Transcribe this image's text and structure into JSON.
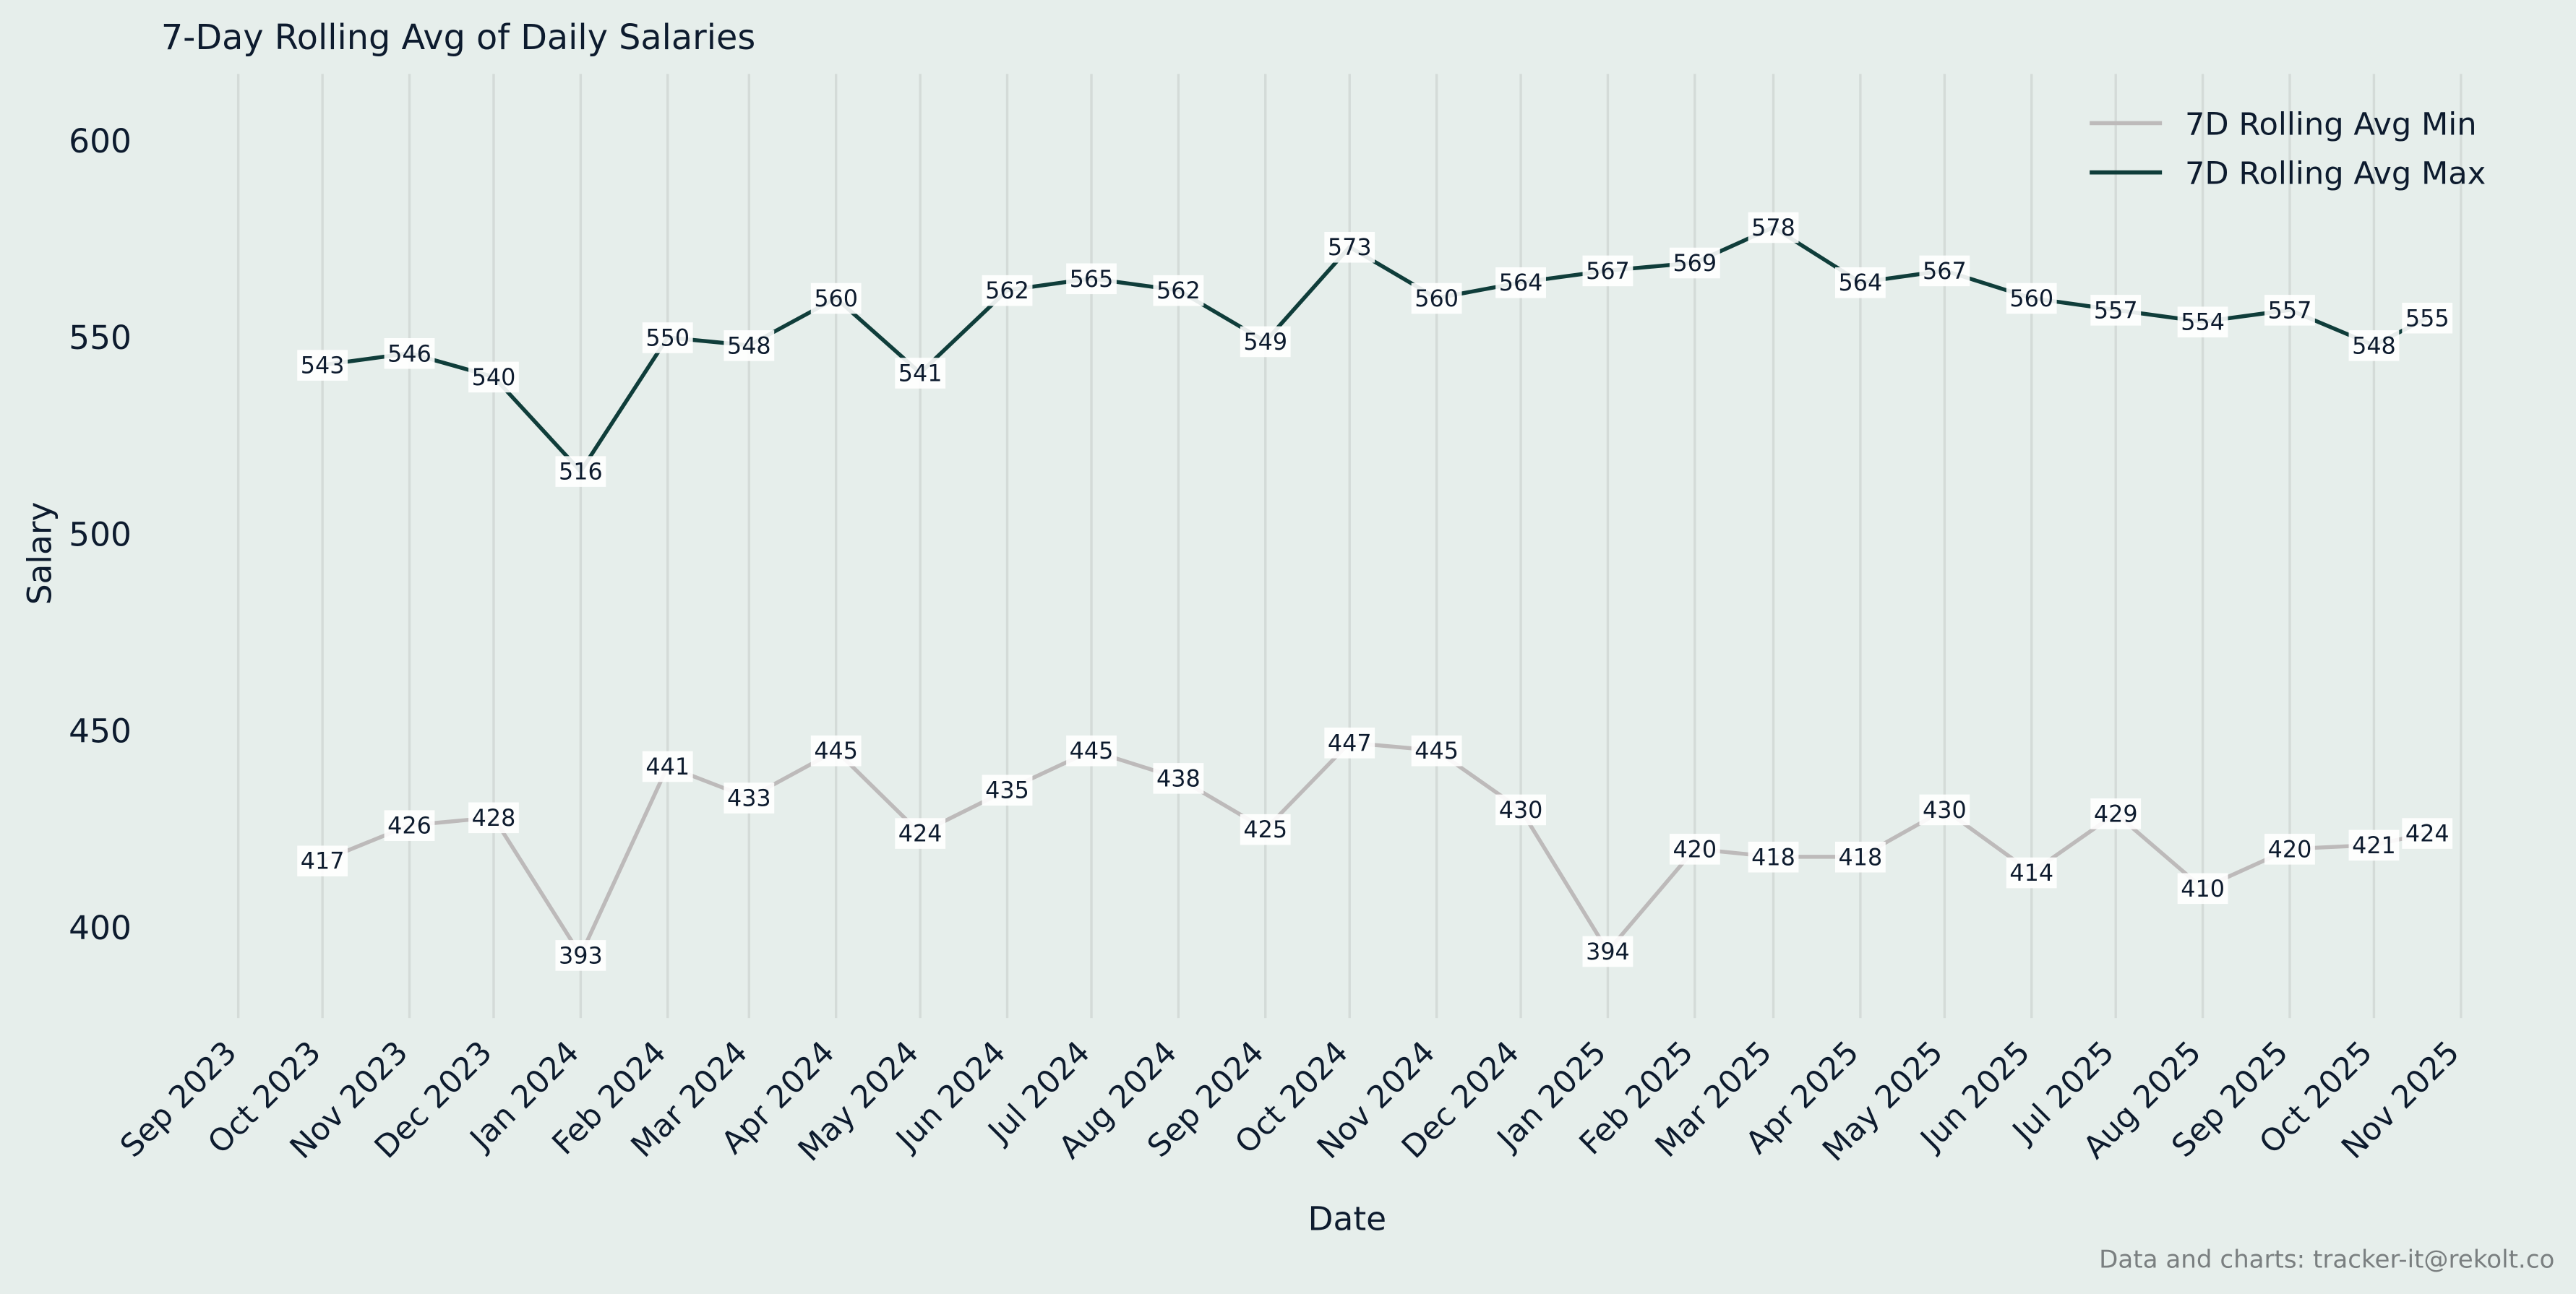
{
  "chart_data": {
    "type": "line",
    "title": "7-Day Rolling Avg of Daily Salaries",
    "x_label": "Date",
    "y_label": "Salary",
    "footnote": "Data and charts: tracker-it@rekolt.co",
    "x": [
      "2023-10",
      "2023-11",
      "2023-12",
      "2024-01",
      "2024-02",
      "2024-03",
      "2024-04",
      "2024-05",
      "2024-06",
      "2024-07",
      "2024-08",
      "2024-09",
      "2024-10",
      "2024-11",
      "2024-12",
      "2025-01",
      "2025-02",
      "2025-03",
      "2025-04",
      "2025-05",
      "2025-06",
      "2025-07",
      "2025-08",
      "2025-09",
      "2025-10",
      "2025-10-20"
    ],
    "series": [
      {
        "name": "7D Rolling Avg Min",
        "color": "#bdbaba",
        "values": [
          417,
          426,
          428,
          393,
          441,
          433,
          445,
          424,
          435,
          445,
          438,
          425,
          447,
          445,
          430,
          394,
          420,
          418,
          418,
          430,
          414,
          429,
          410,
          420,
          421,
          424
        ]
      },
      {
        "name": "7D Rolling Avg Max",
        "color": "#0f3d3a",
        "values": [
          543,
          546,
          540,
          516,
          550,
          548,
          560,
          541,
          562,
          565,
          562,
          549,
          573,
          560,
          564,
          567,
          569,
          578,
          564,
          567,
          560,
          557,
          554,
          557,
          548,
          555
        ]
      }
    ],
    "xlim": [
      "2023-09",
      "2025-11"
    ],
    "xticks": [
      {
        "value": "2023-09",
        "label": "Sep 2023"
      },
      {
        "value": "2023-10",
        "label": "Oct 2023"
      },
      {
        "value": "2023-11",
        "label": "Nov 2023"
      },
      {
        "value": "2023-12",
        "label": "Dec 2023"
      },
      {
        "value": "2024-01",
        "label": "Jan 2024"
      },
      {
        "value": "2024-02",
        "label": "Feb 2024"
      },
      {
        "value": "2024-03",
        "label": "Mar 2024"
      },
      {
        "value": "2024-04",
        "label": "Apr 2024"
      },
      {
        "value": "2024-05",
        "label": "May 2024"
      },
      {
        "value": "2024-06",
        "label": "Jun 2024"
      },
      {
        "value": "2024-07",
        "label": "Jul 2024"
      },
      {
        "value": "2024-08",
        "label": "Aug 2024"
      },
      {
        "value": "2024-09",
        "label": "Sep 2024"
      },
      {
        "value": "2024-10",
        "label": "Oct 2024"
      },
      {
        "value": "2024-11",
        "label": "Nov 2024"
      },
      {
        "value": "2024-12",
        "label": "Dec 2024"
      },
      {
        "value": "2025-01",
        "label": "Jan 2025"
      },
      {
        "value": "2025-02",
        "label": "Feb 2025"
      },
      {
        "value": "2025-03",
        "label": "Mar 2025"
      },
      {
        "value": "2025-04",
        "label": "Apr 2025"
      },
      {
        "value": "2025-05",
        "label": "May 2025"
      },
      {
        "value": "2025-06",
        "label": "Jun 2025"
      },
      {
        "value": "2025-07",
        "label": "Jul 2025"
      },
      {
        "value": "2025-08",
        "label": "Aug 2025"
      },
      {
        "value": "2025-09",
        "label": "Sep 2025"
      },
      {
        "value": "2025-10",
        "label": "Oct 2025"
      },
      {
        "value": "2025-11",
        "label": "Nov 2025"
      }
    ],
    "ylim": [
      377,
      617
    ],
    "yticks": [
      400,
      450,
      500,
      550,
      600
    ],
    "grid": "x",
    "legend": "upper right"
  }
}
